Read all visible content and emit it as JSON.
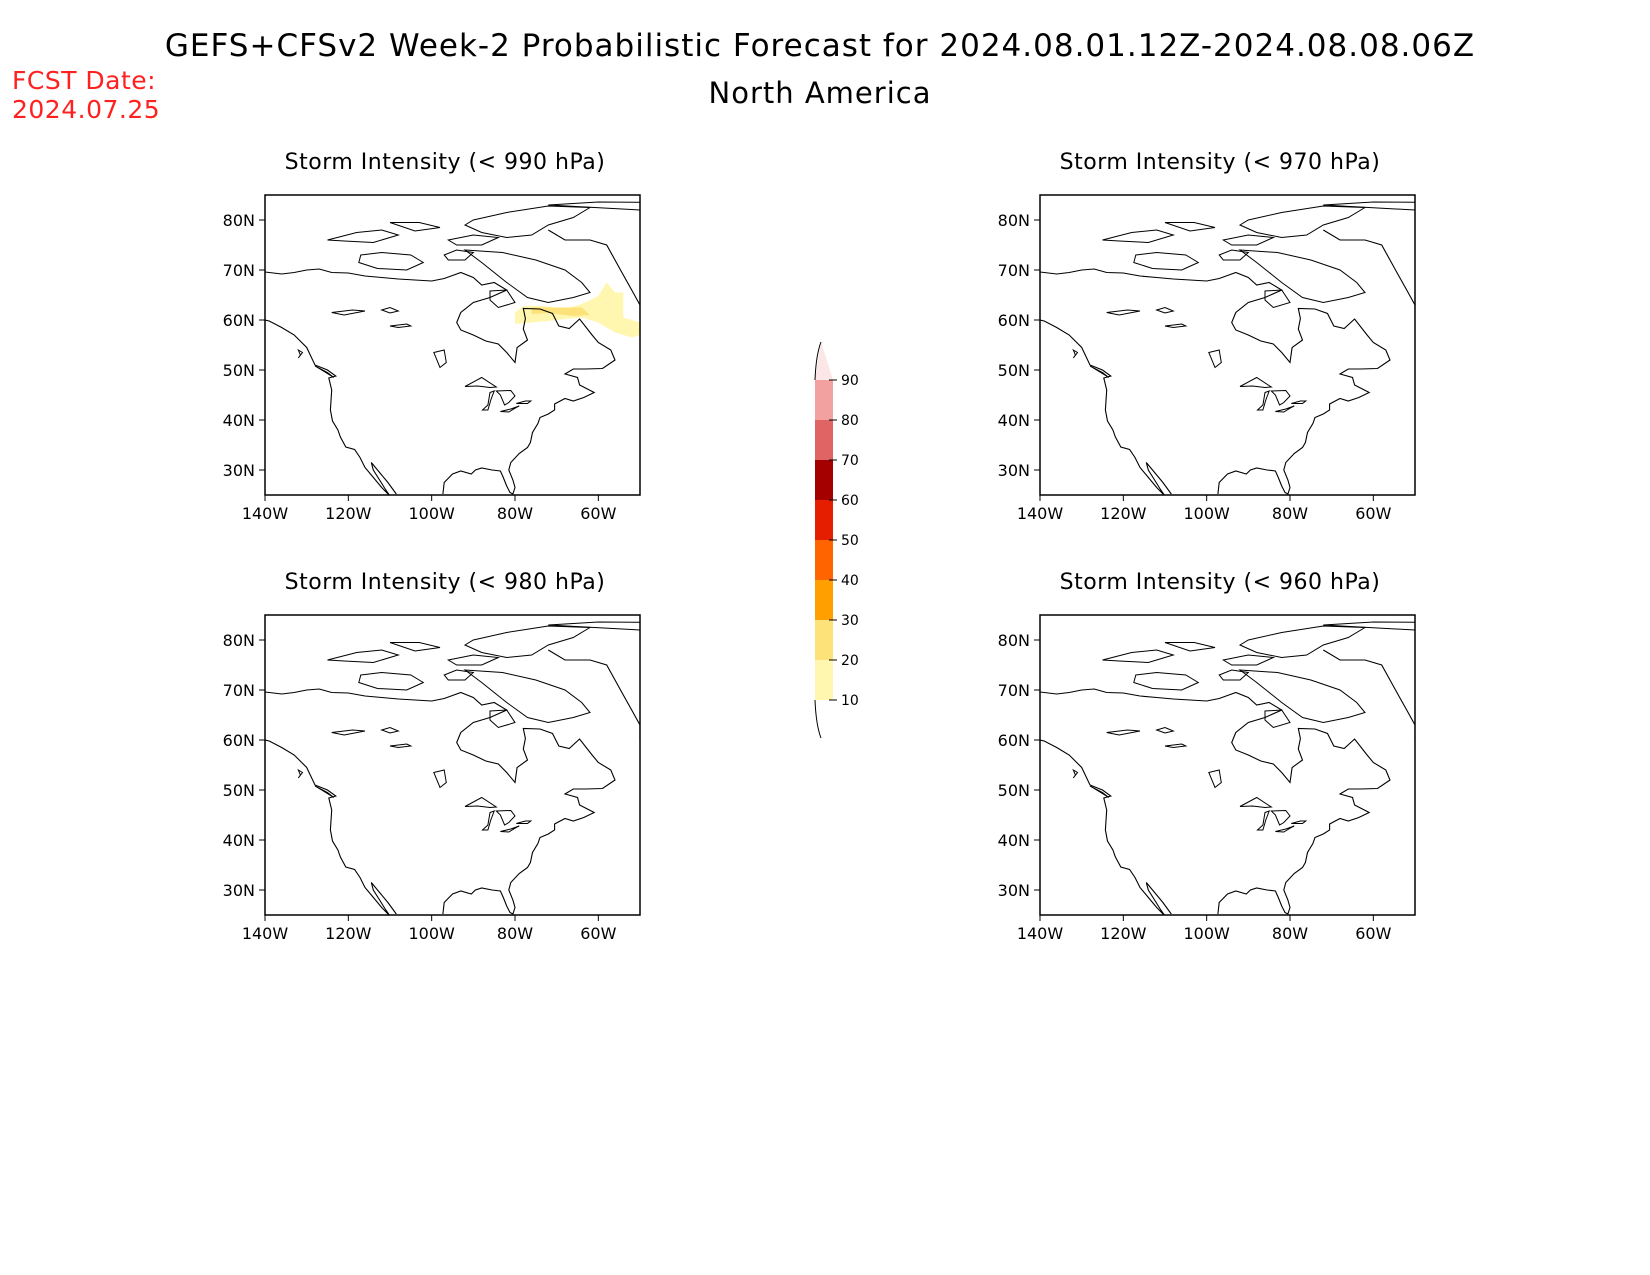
{
  "header": {
    "title": "GEFS+CFSv2 Week-2 Probabilistic Forecast for 2024.08.01.12Z-2024.08.08.06Z",
    "subtitle": "North America",
    "fcst_label": "FCST Date:",
    "fcst_date": "2024.07.25"
  },
  "axes": {
    "lon_ticks": [
      "140W",
      "120W",
      "100W",
      "80W",
      "60W"
    ],
    "lat_ticks": [
      "80N",
      "70N",
      "60N",
      "50N",
      "40N",
      "30N"
    ]
  },
  "panels": [
    {
      "id": "p990",
      "title": "Storm Intensity (< 990 hPa)",
      "shading": "20-30% band over Hudson Strait / northern Quebec"
    },
    {
      "id": "p970",
      "title": "Storm Intensity (< 970 hPa)"
    },
    {
      "id": "p980",
      "title": "Storm Intensity (< 980 hPa)"
    },
    {
      "id": "p960",
      "title": "Storm Intensity (< 960 hPa)"
    }
  ],
  "colorbar": {
    "levels": [
      "90",
      "80",
      "70",
      "60",
      "50",
      "40",
      "30",
      "20",
      "10"
    ],
    "colors": [
      "#fde6e6",
      "#f2a0a0",
      "#e06464",
      "#a50000",
      "#e61e00",
      "#ff6400",
      "#ffa000",
      "#fde27a",
      "#fff7b0"
    ]
  },
  "chart_data": {
    "type": "heatmap",
    "region": "North America",
    "lon_range": [
      "140W",
      "50W"
    ],
    "lat_range": [
      "25N",
      "85N"
    ],
    "panels": [
      {
        "threshold": "< 990 hPa",
        "max_probability_percent": 30,
        "area": "55N-67N, 80W-52W"
      },
      {
        "threshold": "< 980 hPa",
        "max_probability_percent": 0
      },
      {
        "threshold": "< 970 hPa",
        "max_probability_percent": 0
      },
      {
        "threshold": "< 960 hPa",
        "max_probability_percent": 0
      }
    ]
  }
}
